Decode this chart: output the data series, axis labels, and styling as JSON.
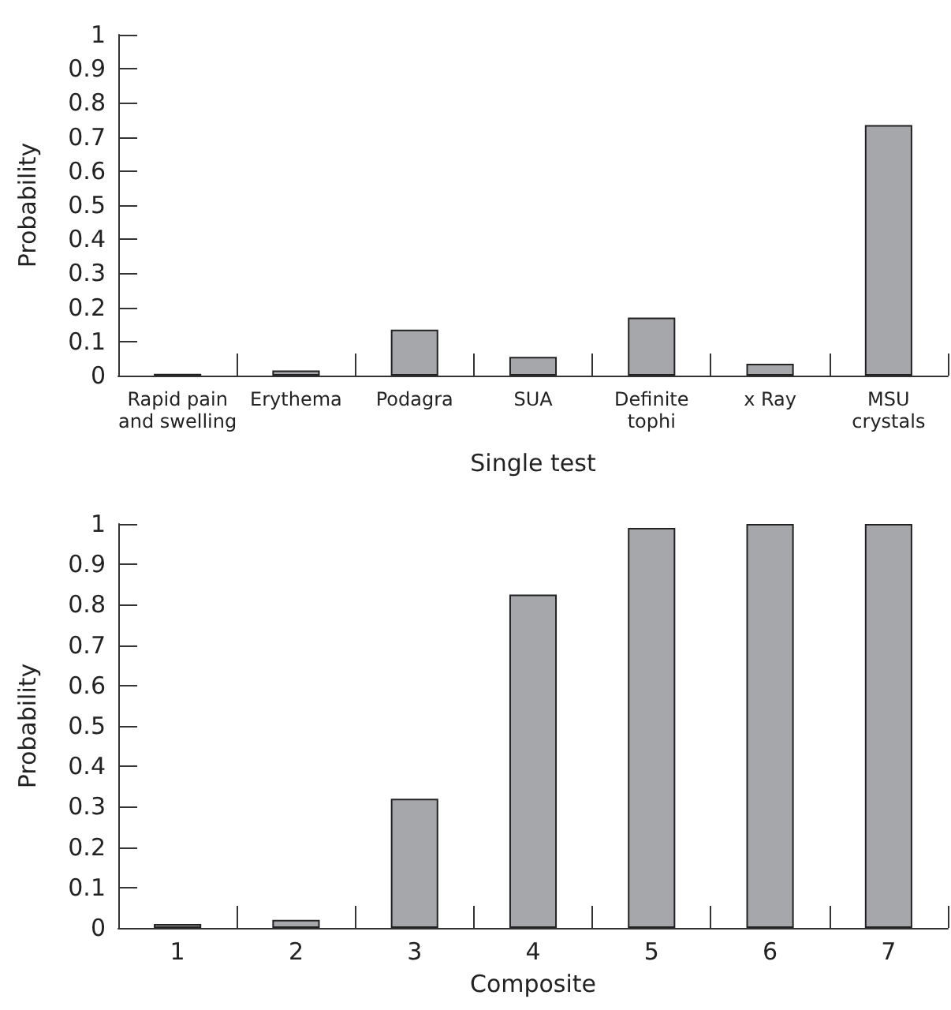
{
  "chart_data": [
    {
      "type": "bar",
      "xlabel": "Single test",
      "ylabel": "Probability",
      "categories": [
        "Rapid pain\nand swelling",
        "Erythema",
        "Podagra",
        "SUA",
        "Definite\ntophi",
        "x Ray",
        "MSU\ncrystals"
      ],
      "values": [
        0.005,
        0.015,
        0.135,
        0.055,
        0.17,
        0.035,
        0.735
      ],
      "color": "#a6a7ab",
      "ylim": [
        0,
        1
      ],
      "yticks": [
        0,
        0.1,
        0.2,
        0.3,
        0.4,
        0.5,
        0.6,
        0.7,
        0.8,
        0.9,
        1
      ]
    },
    {
      "type": "bar",
      "xlabel": "Composite",
      "ylabel": "Probability",
      "categories": [
        "1",
        "2",
        "3",
        "4",
        "5",
        "6",
        "7"
      ],
      "values": [
        0.01,
        0.02,
        0.32,
        0.825,
        0.99,
        1.0,
        1.0
      ],
      "color": "#a6a7ab",
      "ylim": [
        0,
        1
      ],
      "yticks": [
        0,
        0.1,
        0.2,
        0.3,
        0.4,
        0.5,
        0.6,
        0.7,
        0.8,
        0.9,
        1
      ]
    }
  ]
}
